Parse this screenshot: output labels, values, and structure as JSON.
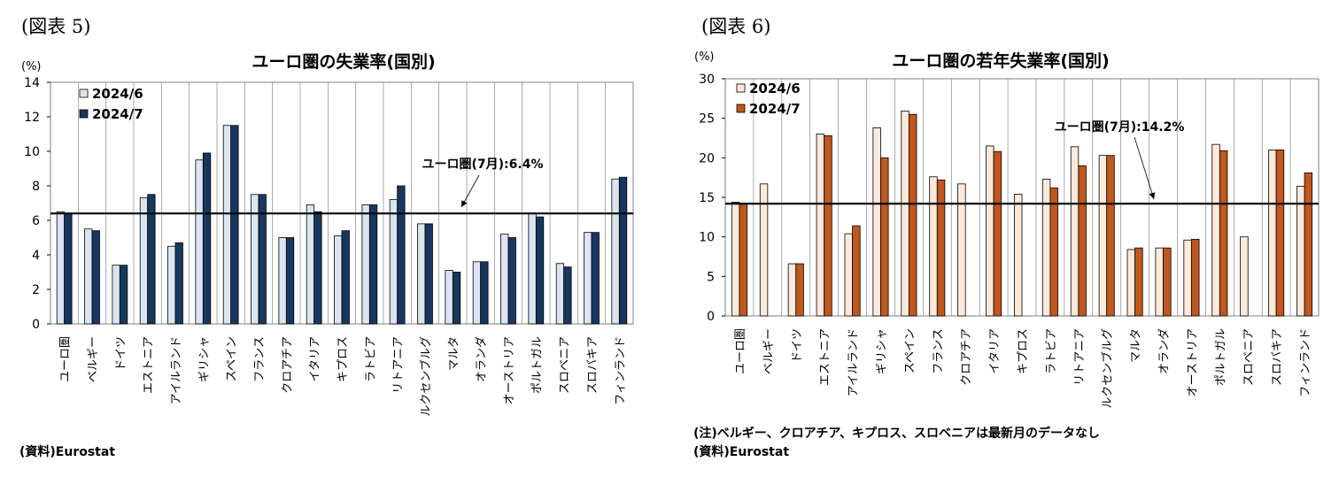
{
  "figures": [
    {
      "fig_label": "(図表 5)",
      "notes": [
        "(資料)Eurostat"
      ]
    },
    {
      "fig_label": "(図表 6)",
      "notes": [
        "(注)ベルギー、クロアチア、キプロス、スロベニアは最新月のデータなし",
        "(資料)Eurostat"
      ]
    }
  ],
  "colors": {
    "fig5_jun": "#dbe5f1",
    "fig5_jul": "#17375e",
    "fig6_jun": "#fde9d9",
    "fig6_jul": "#c0571c",
    "reference_line": "#000000",
    "gridline": "#000000"
  },
  "chart_data": [
    {
      "type": "bar",
      "title": "ユーロ圏の失業率(国別)",
      "ylabel": "(%)",
      "xlabel": "",
      "ylim": [
        0,
        14
      ],
      "yticks": [
        0,
        2,
        4,
        6,
        8,
        10,
        12,
        14
      ],
      "grid": "vertical separators between categories",
      "legend_position": "top-left",
      "categories": [
        "ユーロ圏",
        "ベルギー",
        "ドイツ",
        "エストニア",
        "アイルランド",
        "ギリシャ",
        "スペイン",
        "フランス",
        "クロアチア",
        "イタリア",
        "キプロス",
        "ラトビア",
        "リトアニア",
        "ルクセンブルグ",
        "マルタ",
        "オランダ",
        "オーストリア",
        "ポルトガル",
        "スロベニア",
        "スロバキア",
        "フィンランド"
      ],
      "series": [
        {
          "name": "2024/6",
          "values": [
            6.5,
            5.5,
            3.4,
            7.3,
            4.5,
            9.5,
            11.5,
            7.5,
            5.0,
            6.9,
            5.1,
            6.9,
            7.2,
            5.8,
            3.1,
            3.6,
            5.2,
            6.4,
            3.5,
            5.3,
            8.4
          ]
        },
        {
          "name": "2024/7",
          "values": [
            6.4,
            5.4,
            3.4,
            7.5,
            4.7,
            9.9,
            11.5,
            7.5,
            5.0,
            6.5,
            5.4,
            6.9,
            8.0,
            5.8,
            3.0,
            3.6,
            5.0,
            6.2,
            3.3,
            5.3,
            8.5
          ]
        }
      ],
      "reference_line": {
        "value": 6.4,
        "label": "ユーロ圏(7月):6.4%"
      }
    },
    {
      "type": "bar",
      "title": "ユーロ圏の若年失業率(国別)",
      "ylabel": "(%)",
      "xlabel": "",
      "ylim": [
        0,
        30
      ],
      "yticks": [
        0,
        5,
        10,
        15,
        20,
        25,
        30
      ],
      "grid": "vertical separators between categories",
      "legend_position": "top-left",
      "categories": [
        "ユーロ圏",
        "ベルギー",
        "ドイツ",
        "エストニア",
        "アイルランド",
        "ギリシャ",
        "スペイン",
        "フランス",
        "クロアチア",
        "イタリア",
        "キプロス",
        "ラトビア",
        "リトアニア",
        "ルクセンブルグ",
        "マルタ",
        "オランダ",
        "オーストリア",
        "ポルトガル",
        "スロベニア",
        "スロバキア",
        "フィンランド"
      ],
      "series": [
        {
          "name": "2024/6",
          "values": [
            14.4,
            16.7,
            6.6,
            23.0,
            10.4,
            23.8,
            25.9,
            17.6,
            16.7,
            21.5,
            15.4,
            17.3,
            21.4,
            20.3,
            8.4,
            8.6,
            9.6,
            21.7,
            10.0,
            21.0,
            16.4
          ]
        },
        {
          "name": "2024/7",
          "values": [
            14.2,
            null,
            6.6,
            22.8,
            11.4,
            20.0,
            25.5,
            17.2,
            null,
            20.8,
            null,
            16.2,
            19.0,
            20.3,
            8.6,
            8.6,
            9.7,
            20.9,
            null,
            21.0,
            18.1
          ]
        }
      ],
      "reference_line": {
        "value": 14.2,
        "label": "ユーロ圏(7月):14.2%"
      }
    }
  ]
}
